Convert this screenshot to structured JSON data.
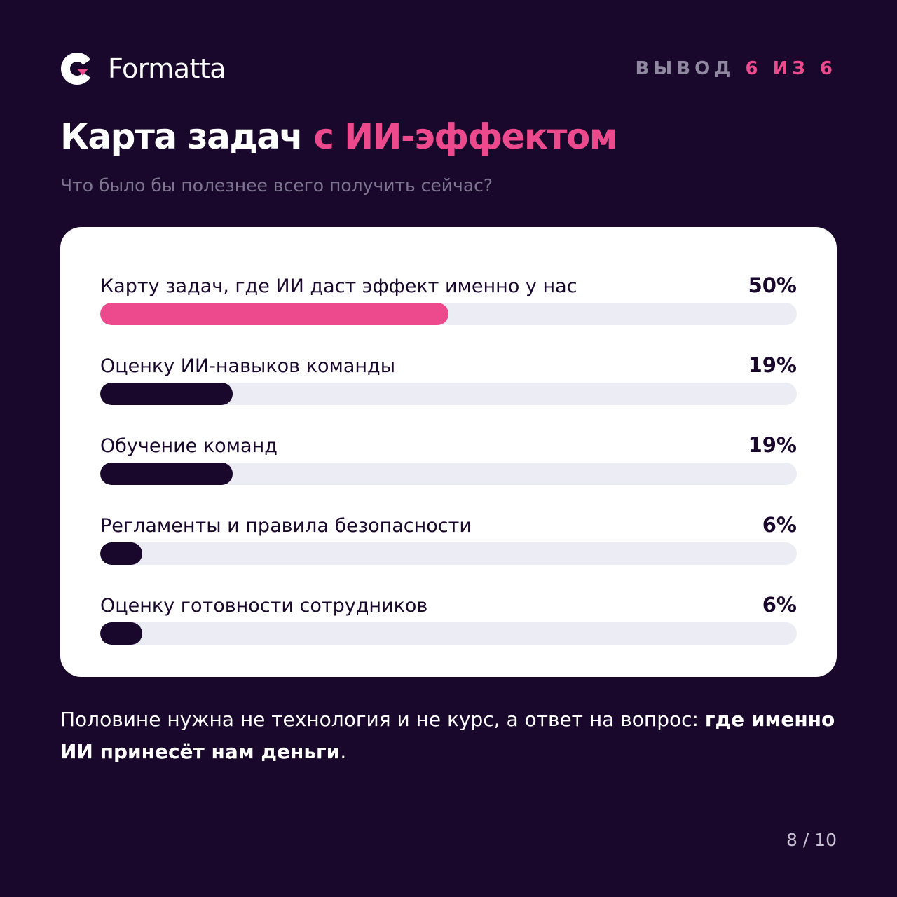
{
  "brand": {
    "name": "Formatta",
    "logo_icon": "formatta-logo-icon"
  },
  "counter": {
    "prefix": "ВЫВОД",
    "current": "6",
    "separator": "ИЗ",
    "total": "6"
  },
  "title": {
    "main": "Карта задач",
    "accent": "с ИИ-эффектом"
  },
  "subtitle": "Что было бы полезнее всего получить сейчас?",
  "colors": {
    "background": "#19082b",
    "accent": "#ec4a8d",
    "bar_dark": "#19082b",
    "bar_track": "#ececf5",
    "card": "#ffffff"
  },
  "chart_data": {
    "type": "bar",
    "orientation": "horizontal",
    "categories": [
      "Карту задач, где ИИ даст эффект именно у нас",
      "Оценку ИИ-навыков команды",
      "Обучение команд",
      "Регламенты и правила безопасности",
      "Оценку готовности сотрудников"
    ],
    "values": [
      50,
      19,
      19,
      6,
      6
    ],
    "value_labels": [
      "50%",
      "19%",
      "19%",
      "6%",
      "6%"
    ],
    "highlighted_index": 0,
    "xlim": [
      0,
      100
    ],
    "grid": false,
    "legend": "none"
  },
  "summary": {
    "plain": "Половине нужна не технология и не курс, а ответ на вопрос: ",
    "bold": "где именно ИИ принесёт нам деньги",
    "end": "."
  },
  "pagination": "8 / 10"
}
